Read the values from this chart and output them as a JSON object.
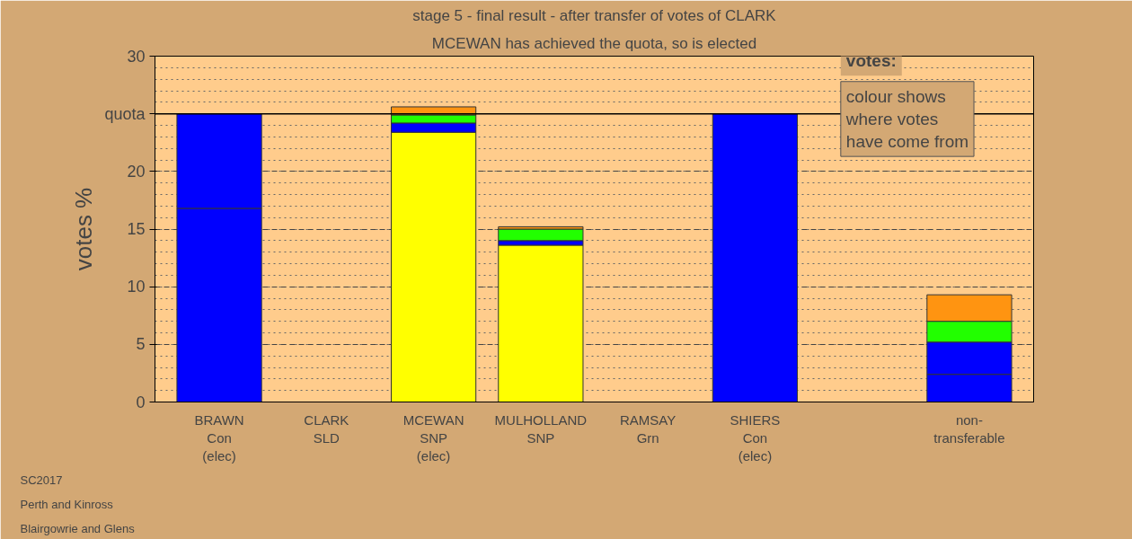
{
  "chart_data": {
    "type": "bar",
    "stacked": true,
    "title": "stage 5 - final result - after transfer of votes of CLARK",
    "subtitle": "MCEWAN has achieved the quota, so is elected",
    "ylabel": "votes %",
    "categories": [
      "BRAWN\nCon\n(elec)",
      "CLARK\nSLD",
      "MCEWAN\nSNP\n(elec)",
      "MULHOLLAND\nSNP",
      "RAMSAY\nGrn",
      "SHIERS\nCon\n(elec)",
      null,
      "non-\ntransferable"
    ],
    "series": [
      {
        "color": "#ffff00",
        "values": [
          null,
          null,
          23.4,
          13.6,
          null,
          null,
          null,
          null
        ]
      },
      {
        "color": "#0000ff",
        "values": [
          16.8,
          null,
          0.8,
          0.4,
          null,
          25,
          null,
          2.4
        ]
      },
      {
        "color": "#0000ff",
        "values": [
          8.2,
          null,
          null,
          null,
          null,
          null,
          null,
          2.8
        ]
      },
      {
        "color": "#22ff00",
        "values": [
          null,
          null,
          0.7,
          1.0,
          null,
          null,
          null,
          1.8
        ]
      },
      {
        "color": "#ff9411",
        "values": [
          null,
          null,
          0.7,
          0.2,
          null,
          null,
          null,
          2.3
        ]
      }
    ],
    "ylim": [
      0,
      30
    ],
    "yticks": [
      0,
      5,
      10,
      15,
      20,
      {
        "value": 25,
        "label": "quota"
      },
      30
    ],
    "ref_lines": [
      {
        "axis": "y",
        "value": 25,
        "color": "#000000",
        "line_style": "solid"
      }
    ],
    "grid": "y",
    "annotations": [
      "votes:",
      "colour shows\nwhere votes\nhave come from",
      "SC2017\nPerth and Kinross\nBlairgowrie and Glens"
    ]
  }
}
